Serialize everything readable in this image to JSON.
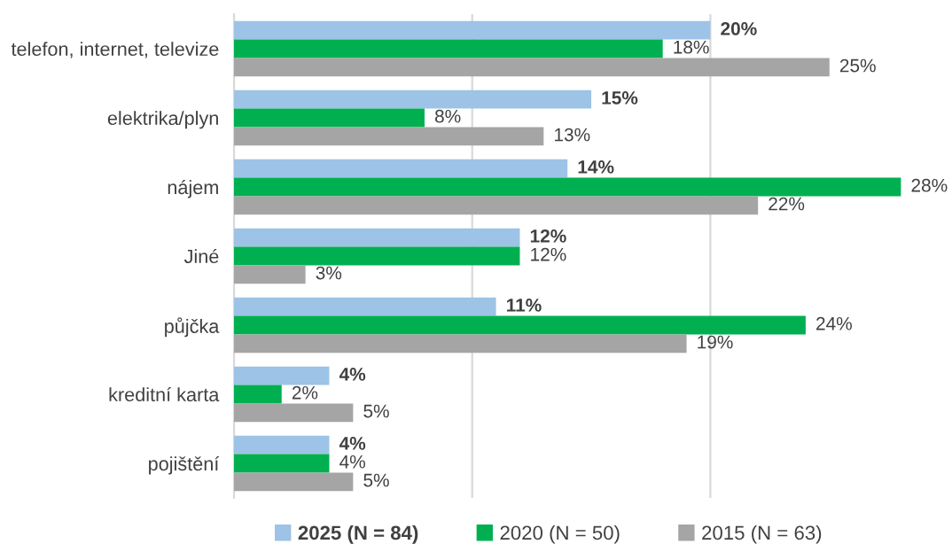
{
  "chart_data": {
    "type": "bar",
    "orientation": "horizontal",
    "categories": [
      "telefon, internet, televize",
      "elektrika/plyn",
      "nájem",
      "Jiné",
      "půjčka",
      "kreditní karta",
      "pojištění"
    ],
    "series": [
      {
        "name": "2025 (N = 84)",
        "color": "#9dc3e6",
        "values": [
          20,
          15,
          14,
          12,
          11,
          4,
          4
        ],
        "value_labels": [
          "20%",
          "15%",
          "14%",
          "12%",
          "11%",
          "4%",
          "4%"
        ]
      },
      {
        "name": "2020 (N = 50)",
        "color": "#00b050",
        "values": [
          18,
          8,
          28,
          12,
          24,
          2,
          4
        ],
        "value_labels": [
          "18%",
          "8%",
          "28%",
          "12%",
          "24%",
          "2%",
          "4%"
        ]
      },
      {
        "name": "2015 (N = 63)",
        "color": "#a5a5a5",
        "values": [
          25,
          13,
          22,
          3,
          19,
          5,
          5
        ],
        "value_labels": [
          "25%",
          "13%",
          "22%",
          "3%",
          "19%",
          "5%",
          "5%"
        ]
      }
    ],
    "ref_lines": [
      {
        "axis": "x",
        "value": 10,
        "color": "#d9d9d9"
      },
      {
        "axis": "x",
        "value": 20,
        "color": "#d9d9d9"
      }
    ],
    "tick_labels": "y",
    "legend": "bottom"
  }
}
